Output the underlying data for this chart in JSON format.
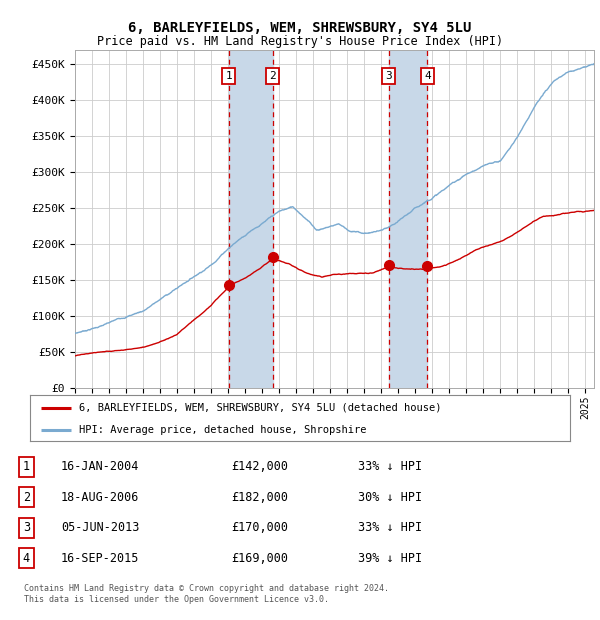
{
  "title": "6, BARLEYFIELDS, WEM, SHREWSBURY, SY4 5LU",
  "subtitle": "Price paid vs. HM Land Registry's House Price Index (HPI)",
  "ylim": [
    0,
    470000
  ],
  "yticks": [
    0,
    50000,
    100000,
    150000,
    200000,
    250000,
    300000,
    350000,
    400000,
    450000
  ],
  "ytick_labels": [
    "£0",
    "£50K",
    "£100K",
    "£150K",
    "£200K",
    "£250K",
    "£300K",
    "£350K",
    "£400K",
    "£450K"
  ],
  "xlim_start": 1995.0,
  "xlim_end": 2025.5,
  "sale_dates": [
    2004.04,
    2006.63,
    2013.43,
    2015.71
  ],
  "sale_prices": [
    142000,
    182000,
    170000,
    169000
  ],
  "sale_labels": [
    "1",
    "2",
    "3",
    "4"
  ],
  "sale_color": "#cc0000",
  "hpi_color": "#7aaad0",
  "span_color": "#c8d8e8",
  "background_color": "#ffffff",
  "grid_color": "#cccccc",
  "legend_entry1": "6, BARLEYFIELDS, WEM, SHREWSBURY, SY4 5LU (detached house)",
  "legend_entry2": "HPI: Average price, detached house, Shropshire",
  "table_rows": [
    [
      "1",
      "16-JAN-2004",
      "£142,000",
      "33% ↓ HPI"
    ],
    [
      "2",
      "18-AUG-2006",
      "£182,000",
      "30% ↓ HPI"
    ],
    [
      "3",
      "05-JUN-2013",
      "£170,000",
      "33% ↓ HPI"
    ],
    [
      "4",
      "16-SEP-2015",
      "£169,000",
      "39% ↓ HPI"
    ]
  ],
  "footnote1": "Contains HM Land Registry data © Crown copyright and database right 2024.",
  "footnote2": "This data is licensed under the Open Government Licence v3.0."
}
